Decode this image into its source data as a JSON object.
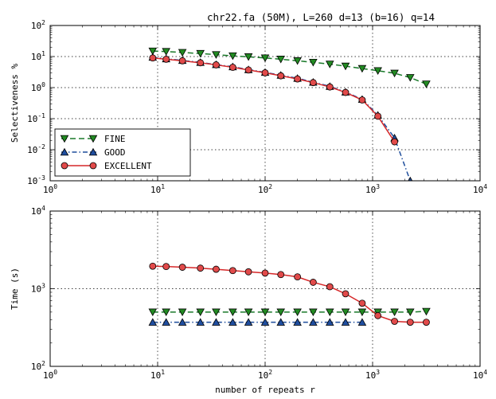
{
  "chart_data": [
    {
      "type": "line",
      "title": "chr22.fa (50M), L=260 d=13 (b=16) q=14",
      "xlabel": "",
      "ylabel": "Selectiveness %",
      "xscale": "log",
      "yscale": "log",
      "xlim": [
        1,
        10000
      ],
      "ylim": [
        0.001,
        100
      ],
      "grid": true,
      "legend": "lower-left",
      "x_ticks": [
        {
          "base": "10",
          "exp": "0"
        },
        {
          "base": "10",
          "exp": "1"
        },
        {
          "base": "10",
          "exp": "2"
        },
        {
          "base": "10",
          "exp": "3"
        },
        {
          "base": "10",
          "exp": "4"
        }
      ],
      "y_ticks": [
        {
          "base": "10",
          "exp": "-3"
        },
        {
          "base": "10",
          "exp": "-2"
        },
        {
          "base": "10",
          "exp": "-1"
        },
        {
          "base": "10",
          "exp": "0"
        },
        {
          "base": "10",
          "exp": "1"
        },
        {
          "base": "10",
          "exp": "2"
        }
      ],
      "series": [
        {
          "name": "FINE",
          "color": "#1a7a2a",
          "fill": "#228b22",
          "marker": "triangle-down",
          "linestyle": "dashed",
          "x": [
            9,
            12,
            17,
            25,
            35,
            50,
            70,
            100,
            140,
            200,
            280,
            400,
            560,
            800,
            1120,
            1600,
            2240,
            3160
          ],
          "y": [
            15,
            14.5,
            13.5,
            12.5,
            11.5,
            10.5,
            9.8,
            9,
            8.2,
            7.3,
            6.5,
            5.7,
            4.9,
            4.1,
            3.5,
            2.9,
            2.1,
            1.3
          ]
        },
        {
          "name": "GOOD",
          "color": "#1f4e9c",
          "fill": "#1f4ea0",
          "marker": "triangle-up",
          "linestyle": "dashdot",
          "x": [
            9,
            12,
            17,
            25,
            35,
            50,
            70,
            100,
            140,
            200,
            280,
            400,
            560,
            800,
            1120,
            1600,
            2240
          ],
          "y": [
            9.5,
            8.5,
            7.5,
            6.5,
            5.5,
            4.7,
            3.8,
            3.1,
            2.5,
            2,
            1.5,
            1.1,
            0.72,
            0.42,
            0.13,
            0.024,
            0.001
          ]
        },
        {
          "name": "EXCELLENT",
          "color": "#d62728",
          "fill": "#e14a4a",
          "marker": "circle",
          "linestyle": "solid",
          "x": [
            9,
            12,
            17,
            25,
            35,
            50,
            70,
            100,
            140,
            200,
            280,
            400,
            560,
            800,
            1120,
            1600
          ],
          "y": [
            9,
            8.2,
            7.3,
            6.3,
            5.4,
            4.5,
            3.7,
            3,
            2.4,
            1.9,
            1.45,
            1.05,
            0.7,
            0.4,
            0.12,
            0.018
          ]
        }
      ]
    },
    {
      "type": "line",
      "title": "",
      "xlabel": "number of repeats r",
      "ylabel": "Time (s)",
      "xscale": "log",
      "yscale": "log",
      "xlim": [
        1,
        10000
      ],
      "ylim": [
        100,
        10000
      ],
      "grid": true,
      "x_ticks": [
        {
          "base": "10",
          "exp": "0"
        },
        {
          "base": "10",
          "exp": "1"
        },
        {
          "base": "10",
          "exp": "2"
        },
        {
          "base": "10",
          "exp": "3"
        },
        {
          "base": "10",
          "exp": "4"
        }
      ],
      "y_ticks": [
        {
          "base": "10",
          "exp": "2"
        },
        {
          "base": "10",
          "exp": "3"
        },
        {
          "base": "10",
          "exp": "4"
        }
      ],
      "series": [
        {
          "name": "FINE",
          "color": "#1a7a2a",
          "fill": "#228b22",
          "marker": "triangle-down",
          "linestyle": "dashed",
          "x": [
            9,
            12,
            17,
            25,
            35,
            50,
            70,
            100,
            140,
            200,
            280,
            400,
            560,
            800,
            1120,
            1600,
            2240,
            3160
          ],
          "y": [
            500,
            500,
            500,
            500,
            500,
            500,
            500,
            500,
            500,
            500,
            500,
            500,
            500,
            500,
            500,
            500,
            500,
            510
          ]
        },
        {
          "name": "GOOD",
          "color": "#1f4e9c",
          "fill": "#1f4ea0",
          "marker": "triangle-up",
          "linestyle": "dashdot",
          "x": [
            9,
            12,
            17,
            25,
            35,
            50,
            70,
            100,
            140,
            200,
            280,
            400,
            560,
            800
          ],
          "y": [
            370,
            370,
            370,
            370,
            370,
            370,
            370,
            370,
            370,
            370,
            370,
            370,
            370,
            370
          ]
        },
        {
          "name": "EXCELLENT",
          "color": "#d62728",
          "fill": "#e14a4a",
          "marker": "circle",
          "linestyle": "solid",
          "x": [
            9,
            12,
            17,
            25,
            35,
            50,
            70,
            100,
            140,
            200,
            280,
            400,
            560,
            800,
            1120,
            1600,
            2240,
            3160
          ],
          "y": [
            1950,
            1930,
            1890,
            1840,
            1780,
            1710,
            1650,
            1590,
            1520,
            1420,
            1210,
            1060,
            860,
            650,
            450,
            380,
            370,
            370
          ]
        }
      ]
    }
  ]
}
